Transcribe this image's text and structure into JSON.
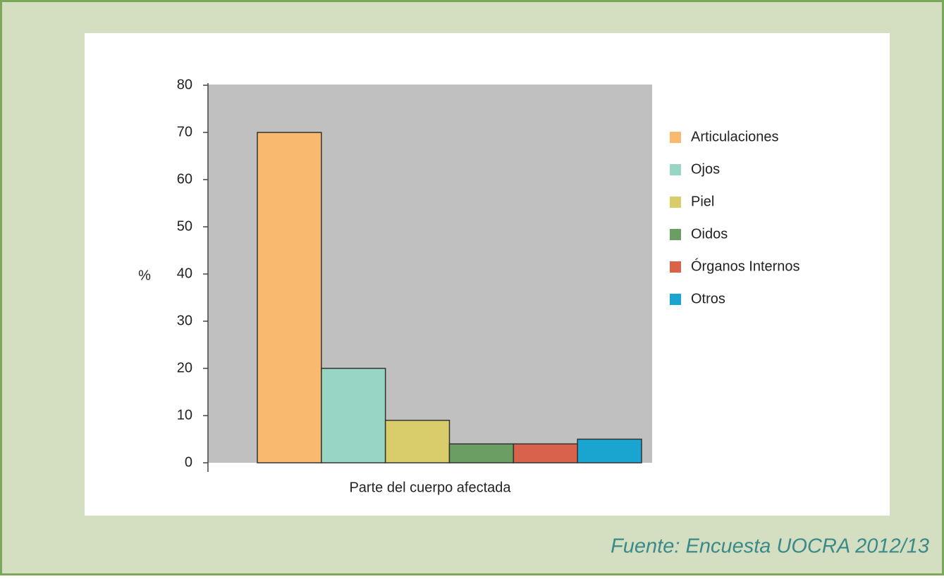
{
  "chart_data": {
    "type": "bar",
    "categories": [
      null
    ],
    "series": [
      {
        "name": "Articulaciones",
        "color": "#f9b96e",
        "values": [
          70
        ]
      },
      {
        "name": "Ojos",
        "color": "#99d5c4",
        "values": [
          20
        ]
      },
      {
        "name": "Piel",
        "color": "#d8cd6a",
        "values": [
          9
        ]
      },
      {
        "name": "Oidos",
        "color": "#6a9e62",
        "values": [
          4
        ]
      },
      {
        "name": "Órganos Internos",
        "color": "#d9634a",
        "values": [
          4
        ]
      },
      {
        "name": "Otros",
        "color": "#1aa5d0",
        "values": [
          5
        ]
      }
    ],
    "xlabel": "Parte del cuerpo afectada",
    "ylabel": "%",
    "ylim": [
      0,
      80
    ],
    "yticks": [
      0,
      10,
      20,
      30,
      40,
      50,
      60,
      70,
      80
    ],
    "legend": "right",
    "source": "Fuente: Encuesta UOCRA 2012/13"
  }
}
